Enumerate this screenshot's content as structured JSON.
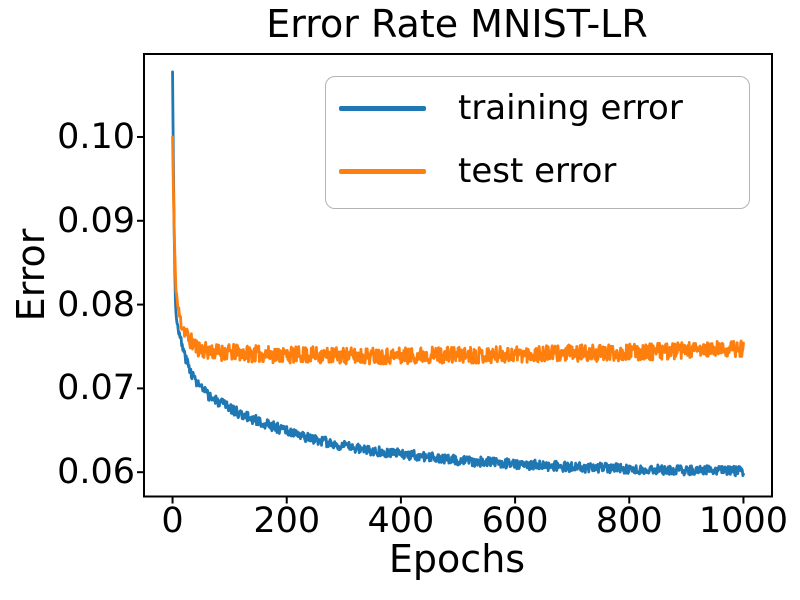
{
  "chart_data": {
    "type": "line",
    "title": "Error Rate MNIST-LR",
    "xlabel": "Epochs",
    "ylabel": "Error",
    "x_ticks": {
      "values": [
        0,
        200,
        400,
        600,
        800,
        1000
      ],
      "labels": [
        "0",
        "200",
        "400",
        "600",
        "800",
        "1000"
      ]
    },
    "y_ticks": {
      "values": [
        0.06,
        0.07,
        0.08,
        0.09,
        0.1
      ],
      "labels": [
        "0.06",
        "0.07",
        "0.08",
        "0.09",
        "0.10"
      ]
    },
    "xlim": [
      -50,
      1050
    ],
    "ylim": [
      0.0571,
      0.1099
    ],
    "grid": false,
    "legend_position": "upper right",
    "n_points": 1001,
    "series": [
      {
        "name": "training error",
        "color": "#1f77b4",
        "noise_amplitude": 0.0006,
        "seed": 3,
        "anchors": [
          [
            0,
            0.1077
          ],
          [
            1,
            0.1005
          ],
          [
            2,
            0.0935
          ],
          [
            3,
            0.0882
          ],
          [
            4,
            0.0838
          ],
          [
            5,
            0.0805
          ],
          [
            6,
            0.079
          ],
          [
            8,
            0.0779
          ],
          [
            10,
            0.0772
          ],
          [
            13,
            0.0761
          ],
          [
            16,
            0.0753
          ],
          [
            20,
            0.0743
          ],
          [
            25,
            0.0732
          ],
          [
            30,
            0.0723
          ],
          [
            35,
            0.0716
          ],
          [
            40,
            0.071
          ],
          [
            45,
            0.0705
          ],
          [
            50,
            0.0701
          ],
          [
            60,
            0.0693
          ],
          [
            70,
            0.0688
          ],
          [
            85,
            0.0682
          ],
          [
            100,
            0.0677
          ],
          [
            120,
            0.0669
          ],
          [
            150,
            0.0661
          ],
          [
            175,
            0.0655
          ],
          [
            200,
            0.0649
          ],
          [
            225,
            0.0643
          ],
          [
            250,
            0.0639
          ],
          [
            275,
            0.0635
          ],
          [
            300,
            0.0631
          ],
          [
            350,
            0.0626
          ],
          [
            400,
            0.0622
          ],
          [
            450,
            0.0618
          ],
          [
            500,
            0.0614
          ],
          [
            550,
            0.0612
          ],
          [
            600,
            0.061
          ],
          [
            650,
            0.0608
          ],
          [
            700,
            0.0606
          ],
          [
            750,
            0.0605
          ],
          [
            800,
            0.0604
          ],
          [
            850,
            0.0603
          ],
          [
            900,
            0.0602
          ],
          [
            950,
            0.0602
          ],
          [
            1000,
            0.0601
          ]
        ]
      },
      {
        "name": "test error",
        "color": "#ff7f0e",
        "noise_amplitude": 0.001,
        "seed": 11,
        "anchors": [
          [
            0,
            0.1
          ],
          [
            1,
            0.0956
          ],
          [
            2,
            0.0917
          ],
          [
            3,
            0.0885
          ],
          [
            4,
            0.0858
          ],
          [
            5,
            0.0837
          ],
          [
            6,
            0.0821
          ],
          [
            8,
            0.0805
          ],
          [
            10,
            0.0794
          ],
          [
            13,
            0.0784
          ],
          [
            16,
            0.0777
          ],
          [
            20,
            0.0771
          ],
          [
            25,
            0.0764
          ],
          [
            30,
            0.0758
          ],
          [
            35,
            0.0754
          ],
          [
            40,
            0.0751
          ],
          [
            45,
            0.0748
          ],
          [
            50,
            0.0747
          ],
          [
            60,
            0.0745
          ],
          [
            70,
            0.0744
          ],
          [
            85,
            0.0743
          ],
          [
            100,
            0.0743
          ],
          [
            125,
            0.0742
          ],
          [
            150,
            0.0741
          ],
          [
            200,
            0.074
          ],
          [
            250,
            0.074
          ],
          [
            300,
            0.0739
          ],
          [
            350,
            0.0739
          ],
          [
            400,
            0.0739
          ],
          [
            450,
            0.074
          ],
          [
            500,
            0.074
          ],
          [
            550,
            0.074
          ],
          [
            600,
            0.0741
          ],
          [
            650,
            0.0741
          ],
          [
            700,
            0.0742
          ],
          [
            750,
            0.0742
          ],
          [
            800,
            0.0743
          ],
          [
            850,
            0.0744
          ],
          [
            900,
            0.0745
          ],
          [
            950,
            0.0746
          ],
          [
            1000,
            0.0748
          ]
        ]
      }
    ]
  },
  "colors": {
    "background": "#ffffff",
    "axis": "#000000",
    "text": "#000000",
    "legend_border": "#b4b4b4",
    "series_blue": "#1f77b4",
    "series_orange": "#ff7f0e"
  }
}
